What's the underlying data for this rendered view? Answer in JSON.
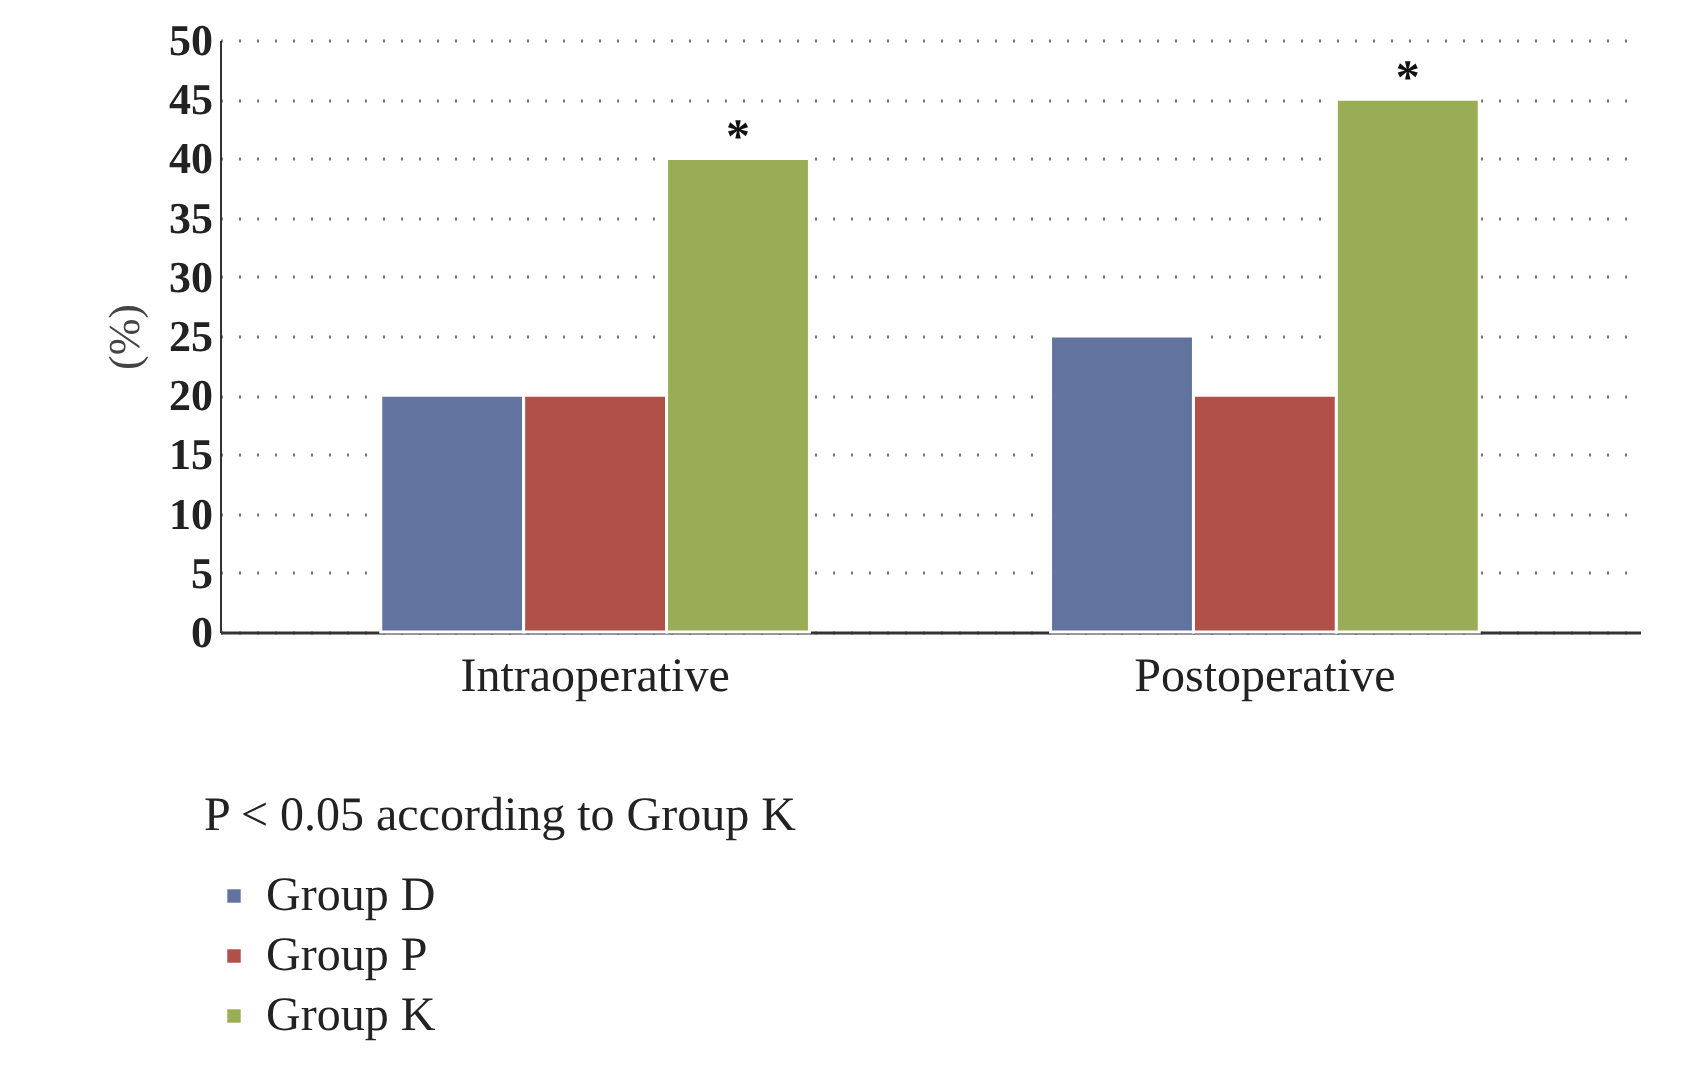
{
  "chart_data": {
    "type": "bar",
    "ylabel": "(%)",
    "categories": [
      "Intraoperative",
      "Postoperative"
    ],
    "series": [
      {
        "name": "Group D",
        "color": "#6273a0",
        "values": [
          20,
          25
        ]
      },
      {
        "name": "Group P",
        "color": "#b14f49",
        "values": [
          20,
          20
        ]
      },
      {
        "name": "Group K",
        "color": "#98ad55",
        "values": [
          40,
          45
        ]
      }
    ],
    "ylim": [
      0,
      50
    ],
    "yticks": [
      0,
      5,
      10,
      15,
      20,
      25,
      30,
      35,
      40,
      45,
      50
    ],
    "grid": "y",
    "legend": "bottom left",
    "annotations": [
      "*",
      "*",
      "P < 0.05 according to Group K"
    ]
  }
}
